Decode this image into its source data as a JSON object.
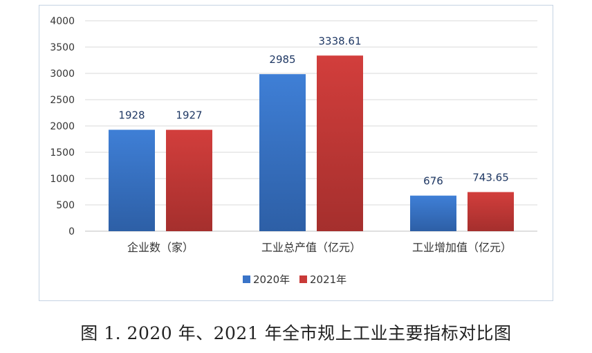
{
  "chart_data": {
    "type": "bar",
    "categories": [
      "企业数（家）",
      "工业总产值（亿元）",
      "工业增加值（亿元）"
    ],
    "series": [
      {
        "name": "2020年",
        "values": [
          1928,
          2985,
          676
        ],
        "labels": [
          "1928",
          "2985",
          "676"
        ],
        "color": "#3a74c8"
      },
      {
        "name": "2021年",
        "values": [
          1927,
          3338.61,
          743.65
        ],
        "labels": [
          "1927",
          "3338.61",
          "743.65"
        ],
        "color": "#c93a38"
      }
    ],
    "ylim": [
      0,
      4000
    ],
    "yticks": [
      0,
      500,
      1000,
      1500,
      2000,
      2500,
      3000,
      3500,
      4000
    ],
    "ytick_labels": [
      "0",
      "500",
      "1000",
      "1500",
      "2000",
      "2500",
      "3000",
      "3500",
      "4000"
    ],
    "grid": true,
    "legend_position": "bottom"
  },
  "caption": "图 1. 2020 年、2021 年全市规上工业主要指标对比图"
}
